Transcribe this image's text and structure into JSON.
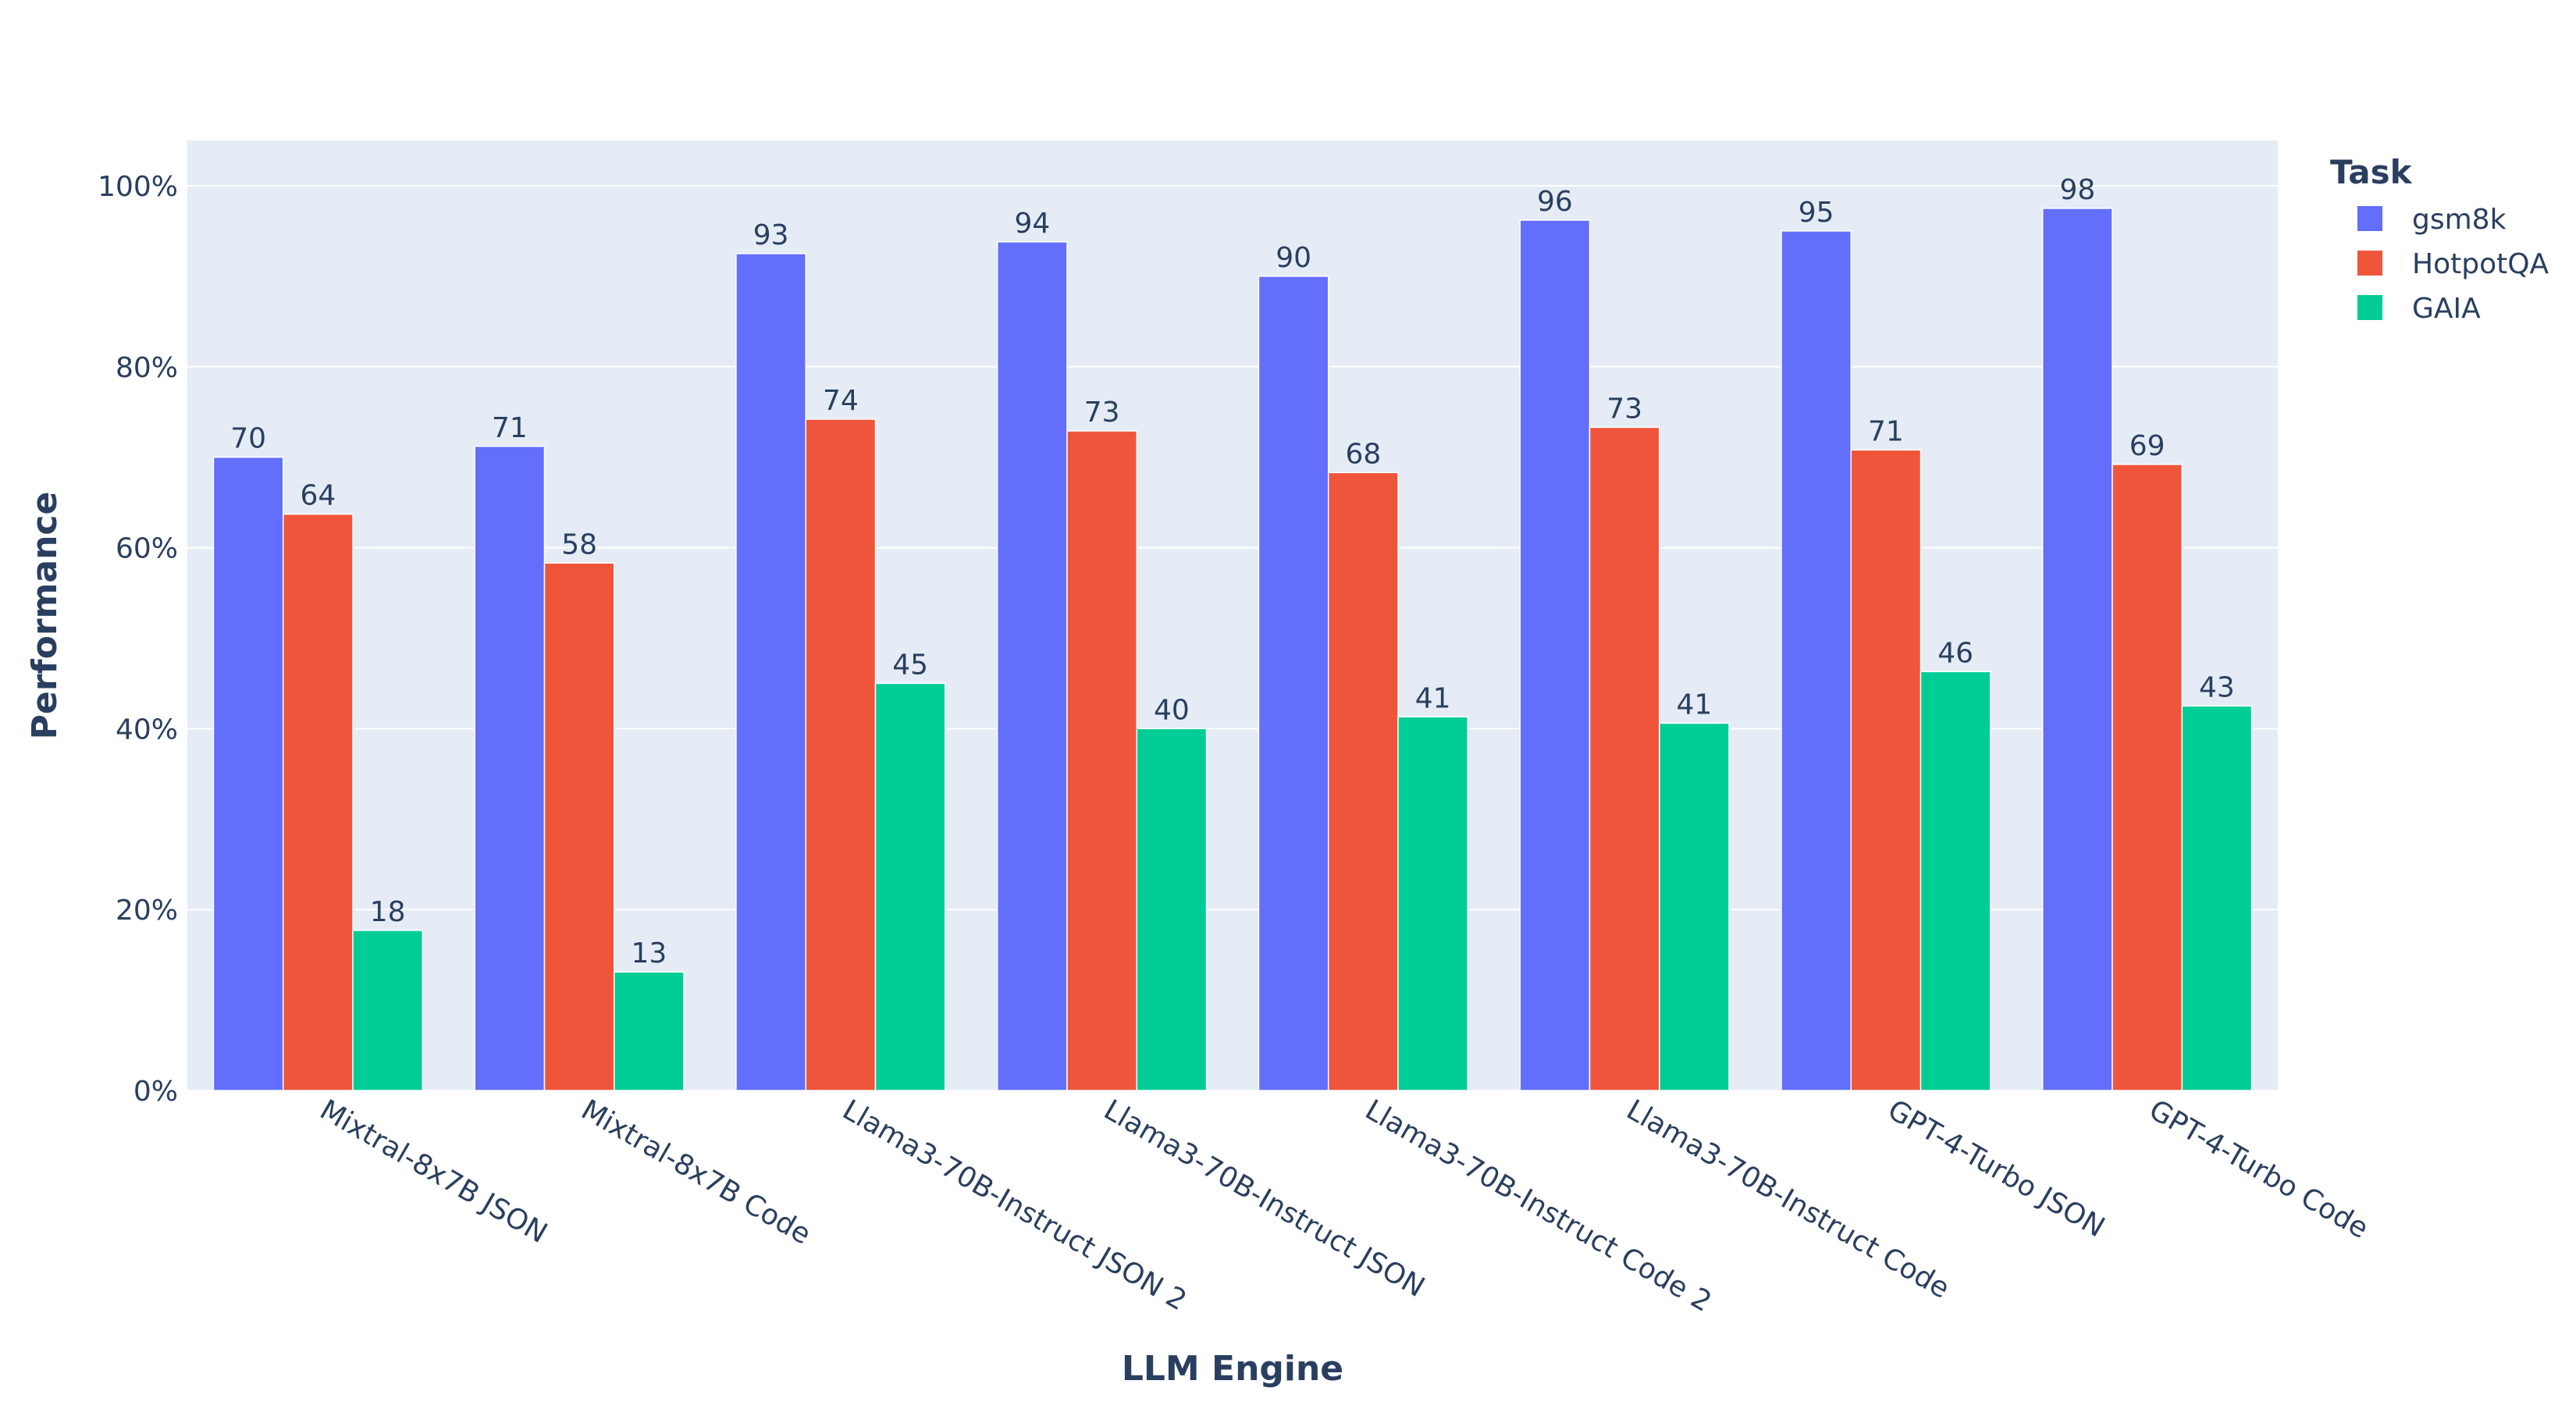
{
  "chart_data": {
    "type": "bar",
    "categories": [
      "Mixtral-8x7B JSON",
      "Mixtral-8x7B Code",
      "Llama3-70B-Instruct JSON 2",
      "Llama3-70B-Instruct JSON",
      "Llama3-70B-Instruct Code 2",
      "Llama3-70B-Instruct Code",
      "GPT-4-Turbo JSON",
      "GPT-4-Turbo Code"
    ],
    "series": [
      {
        "name": "gsm8k",
        "color": "#636efa",
        "values": [
          70,
          71.2,
          92.5,
          93.8,
          90,
          96.2,
          95,
          97.5
        ],
        "labels": [
          "70",
          "71",
          "93",
          "94",
          "90",
          "96",
          "95",
          "98"
        ]
      },
      {
        "name": "HotpotQA",
        "color": "#ef553b",
        "values": [
          63.7,
          58.3,
          74.2,
          72.9,
          68.3,
          73.3,
          70.8,
          69.2
        ],
        "labels": [
          "64",
          "58",
          "74",
          "73",
          "68",
          "73",
          "71",
          "69"
        ]
      },
      {
        "name": "GAIA",
        "color": "#00cc96",
        "values": [
          17.7,
          13.1,
          45,
          40,
          41.3,
          40.6,
          46.3,
          42.5
        ],
        "labels": [
          "18",
          "13",
          "45",
          "40",
          "41",
          "41",
          "46",
          "43"
        ]
      }
    ],
    "title": "",
    "xlabel": "LLM Engine",
    "ylabel": "Performance",
    "ylim": [
      0,
      105
    ],
    "yticks": [
      0,
      20,
      40,
      60,
      80,
      100
    ],
    "ytick_labels": [
      "0%",
      "20%",
      "40%",
      "60%",
      "80%",
      "100%"
    ],
    "grid": true,
    "legend": {
      "title": "Task",
      "position": "top-right"
    },
    "colors": {
      "plot_bg": "#e5ecf6",
      "grid": "#ffffff",
      "text": "#2a3f5f"
    }
  }
}
